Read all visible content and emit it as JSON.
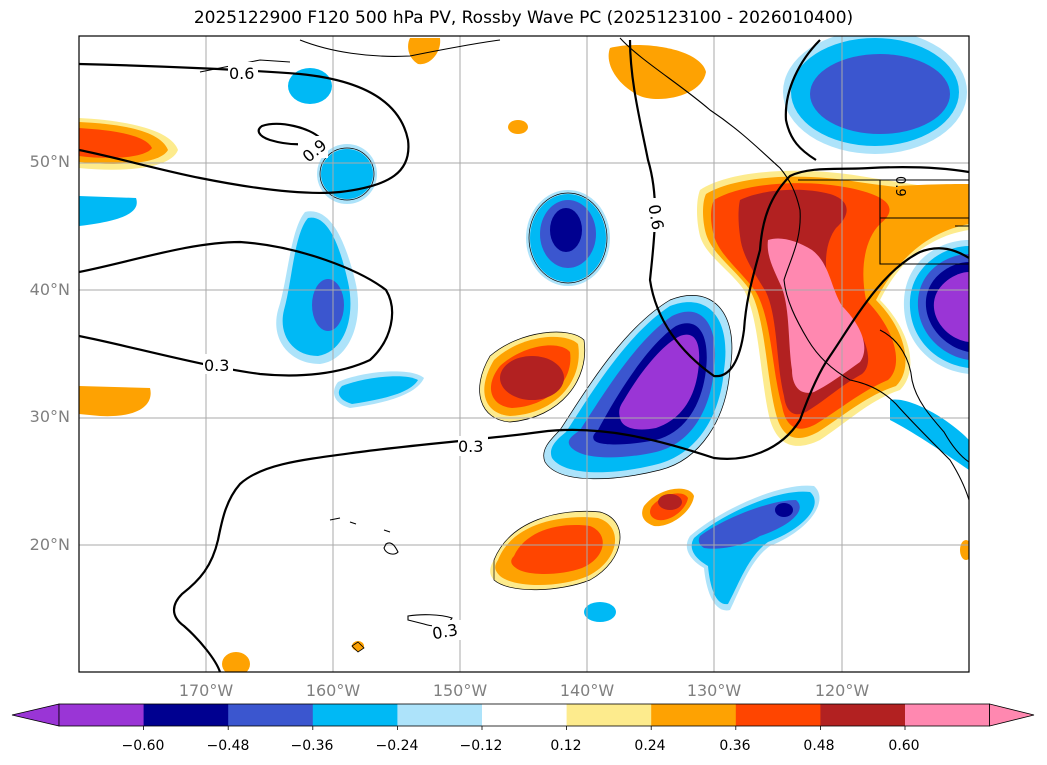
{
  "title": "2025122900 F120 500 hPa PV, Rossby Wave PC (2025123100 - 2026010400)",
  "latitude_labels": [
    "50°N",
    "40°N",
    "30°N",
    "20°N"
  ],
  "longitude_labels": [
    "170°W",
    "160°W",
    "150°W",
    "140°W",
    "130°W",
    "120°W"
  ],
  "contour_labels": [
    "0.6",
    "0.9",
    "0.3",
    "0.3",
    "0.6",
    "0.3",
    "0.9"
  ],
  "colorbar": {
    "tick_labels": [
      "−0.60",
      "−0.48",
      "−0.36",
      "−0.24",
      "−0.12",
      "0.12",
      "0.24",
      "0.36",
      "0.48",
      "0.60"
    ],
    "colors": [
      "#9a35d6",
      "#000090",
      "#3b56cf",
      "#00b9f5",
      "#ade3fa",
      "#ffffff",
      "#fdeb8d",
      "#fea202",
      "#ff4500",
      "#b22121",
      "#ff88b0"
    ]
  },
  "map_bounds": {
    "lon_min": -180,
    "lon_max": -110,
    "lat_min": 10,
    "lat_max": 60
  }
}
